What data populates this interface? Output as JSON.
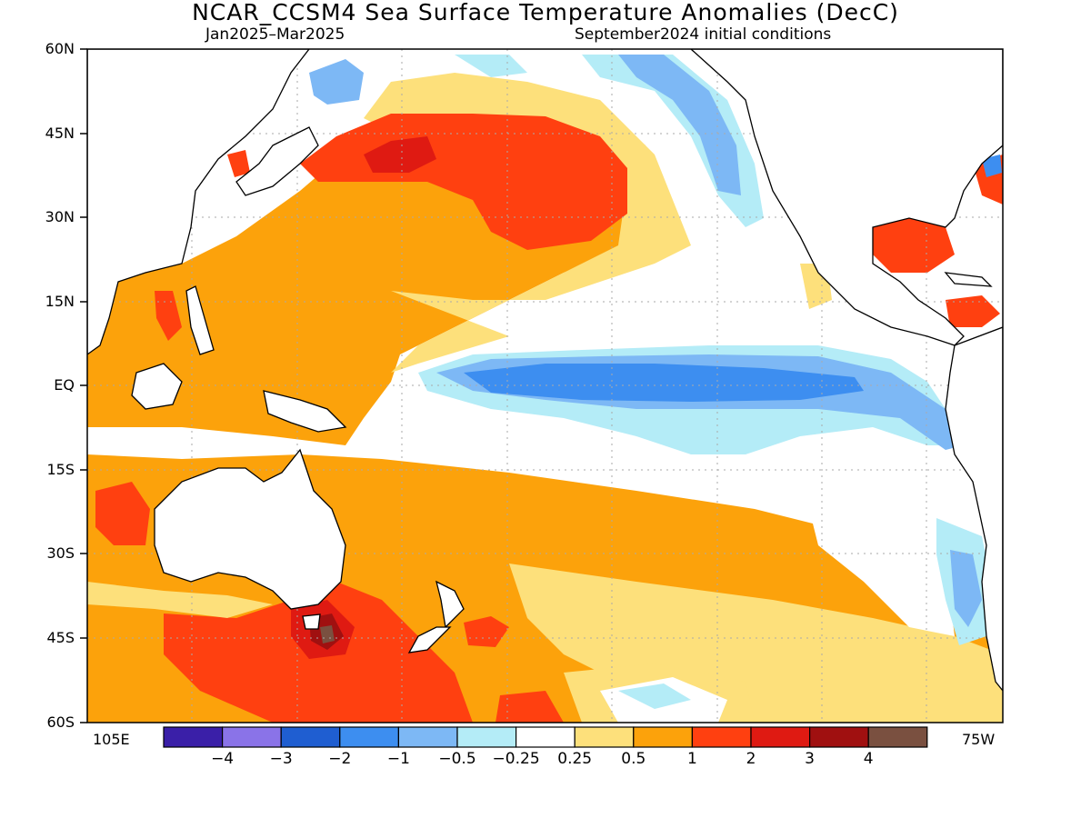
{
  "title": "NCAR_CCSM4 Sea Surface Temperature Anomalies (DecC)",
  "subtitle_left": "Jan2025–Mar2025",
  "subtitle_right": "September2024 initial conditions",
  "lat_labels": [
    "60N",
    "45N",
    "30N",
    "15N",
    "EQ",
    "15S",
    "30S",
    "45S",
    "60S"
  ],
  "lon_labels": {
    "left": "105E",
    "right": "75W"
  },
  "colorbar": {
    "colors": [
      "#3a1fa8",
      "#8a73e8",
      "#1f5ed1",
      "#3d8ef0",
      "#7db8f5",
      "#b4ecf7",
      "#ffffff",
      "#fde07b",
      "#fca20b",
      "#ff4010",
      "#df1a12",
      "#a01010",
      "#7a5040"
    ],
    "labels": [
      "−4",
      "−3",
      "−2",
      "−1",
      "−0.5",
      "−0.25",
      "0.25",
      "0.5",
      "1",
      "2",
      "3",
      "4"
    ]
  }
}
